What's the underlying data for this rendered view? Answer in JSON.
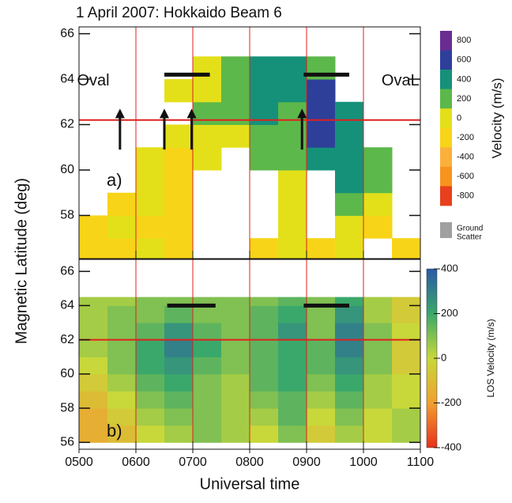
{
  "chart_data": [
    {
      "type": "heatmap",
      "title": "1 April 2007:  Hokkaido Beam 6",
      "y_label": "Magnetic Latitude (deg)",
      "panel_label": "a)",
      "annotations": [
        {
          "text": "Oval",
          "x": 5.25,
          "y": 63.9
        },
        {
          "text": "OvaL",
          "x": 10.65,
          "y": 63.9
        }
      ],
      "x_bins": [
        5,
        5.5,
        6,
        6.5,
        7,
        7.5,
        8,
        8.5,
        9,
        9.5,
        10,
        10.5,
        11
      ],
      "y_bins": [
        56,
        57,
        58,
        59,
        60,
        61,
        62,
        63,
        64,
        65
      ],
      "values": [
        [
          -200,
          -200,
          -100,
          -200,
          null,
          null,
          -200,
          0,
          -200,
          0,
          null,
          -200
        ],
        [
          -200,
          -100,
          -200,
          -200,
          null,
          null,
          null,
          -100,
          null,
          0,
          -200,
          null
        ],
        [
          null,
          -200,
          -100,
          -200,
          null,
          null,
          null,
          0,
          null,
          100,
          0,
          null
        ],
        [
          null,
          null,
          0,
          -200,
          null,
          null,
          null,
          0,
          null,
          300,
          200,
          null
        ],
        [
          null,
          null,
          -100,
          -200,
          0,
          null,
          100,
          200,
          300,
          300,
          200,
          null
        ],
        [
          null,
          null,
          null,
          0,
          0,
          0,
          200,
          200,
          500,
          400,
          null,
          null
        ],
        [
          null,
          null,
          null,
          null,
          200,
          100,
          300,
          200,
          500,
          300,
          null,
          null
        ],
        [
          null,
          null,
          null,
          -100,
          0,
          100,
          300,
          400,
          600,
          null,
          null,
          null
        ],
        [
          null,
          null,
          null,
          null,
          0,
          200,
          400,
          300,
          200,
          null,
          null,
          null
        ]
      ],
      "xlim": [
        5,
        11
      ],
      "ylim": [
        56.1,
        66.3
      ],
      "yticks": [
        58,
        60,
        62,
        64,
        66
      ],
      "colorbar": {
        "label": "Velocity (m/s)",
        "discrete": true,
        "ticks": [
          800,
          600,
          400,
          200,
          0,
          -200,
          -400,
          -600,
          -800
        ],
        "colors": [
          "#6a2c91",
          "#2e3f9a",
          "#15917a",
          "#5cb84a",
          "#e3e01a",
          "#f7d417",
          "#fbb03b",
          "#f7941d",
          "#e8401c"
        ]
      },
      "ground_scatter_label": [
        "Ground",
        "Scatter"
      ],
      "reference_color": "#e0201e",
      "reference_y": 62.2,
      "reference_x": [
        6,
        7,
        8,
        9,
        10
      ],
      "bars": [
        [
          6.5,
          7.3,
          64.2
        ],
        [
          8.95,
          9.75,
          64.2
        ]
      ],
      "arrows": [
        [
          5.72,
          60.9,
          62.7
        ],
        [
          6.5,
          60.9,
          62.7
        ],
        [
          6.98,
          60.9,
          62.7
        ],
        [
          8.92,
          60.9,
          62.7
        ]
      ]
    },
    {
      "type": "heatmap",
      "panel_label": "b)",
      "x_label": "Universal time",
      "x_bins": [
        5,
        5.5,
        6,
        6.5,
        7,
        7.5,
        8,
        8.5,
        9,
        9.5,
        10,
        10.5,
        11
      ],
      "y_bins": [
        56,
        57,
        58,
        59,
        60,
        61,
        62,
        63,
        64,
        64.5
      ],
      "values": [
        [
          -150,
          -100,
          0,
          50,
          100,
          50,
          0,
          100,
          -50,
          50,
          0,
          50
        ],
        [
          -150,
          -50,
          50,
          100,
          100,
          50,
          50,
          150,
          0,
          100,
          0,
          50
        ],
        [
          -100,
          0,
          100,
          150,
          100,
          50,
          100,
          150,
          50,
          150,
          50,
          0
        ],
        [
          -50,
          50,
          150,
          200,
          100,
          50,
          150,
          200,
          100,
          200,
          50,
          0
        ],
        [
          0,
          100,
          200,
          250,
          150,
          100,
          150,
          200,
          150,
          250,
          100,
          -50
        ],
        [
          50,
          100,
          200,
          300,
          200,
          100,
          150,
          200,
          150,
          300,
          100,
          -50
        ],
        [
          50,
          100,
          150,
          250,
          150,
          100,
          150,
          250,
          100,
          300,
          100,
          0
        ],
        [
          50,
          100,
          100,
          150,
          100,
          100,
          150,
          200,
          100,
          250,
          50,
          -50
        ],
        [
          50,
          50,
          100,
          100,
          100,
          100,
          100,
          150,
          100,
          200,
          50,
          -50
        ]
      ],
      "xlim": [
        5,
        11
      ],
      "ylim": [
        55.6,
        66.7
      ],
      "yticks": [
        56,
        58,
        60,
        62,
        64,
        66
      ],
      "xticks": [
        {
          "value": 5,
          "label": "0500"
        },
        {
          "value": 6,
          "label": "0600"
        },
        {
          "value": 7,
          "label": "0700"
        },
        {
          "value": 8,
          "label": "0800"
        },
        {
          "value": 9,
          "label": "0900"
        },
        {
          "value": 10,
          "label": "1000"
        },
        {
          "value": 11,
          "label": "1100"
        }
      ],
      "colorbar": {
        "label": "LOS Velocity (m/s)",
        "discrete": false,
        "ticks": [
          400,
          200,
          0,
          -200,
          -400
        ],
        "colors": [
          "#2a5aa8",
          "#3aa86a",
          "#c8d83a",
          "#f0a030",
          "#e8301c"
        ]
      },
      "reference_color": "#e0201e",
      "reference_y": 62,
      "reference_x": [
        6,
        7,
        8,
        9,
        10
      ],
      "bars": [
        [
          6.55,
          7.4,
          64
        ],
        [
          8.95,
          9.75,
          64
        ]
      ]
    }
  ]
}
